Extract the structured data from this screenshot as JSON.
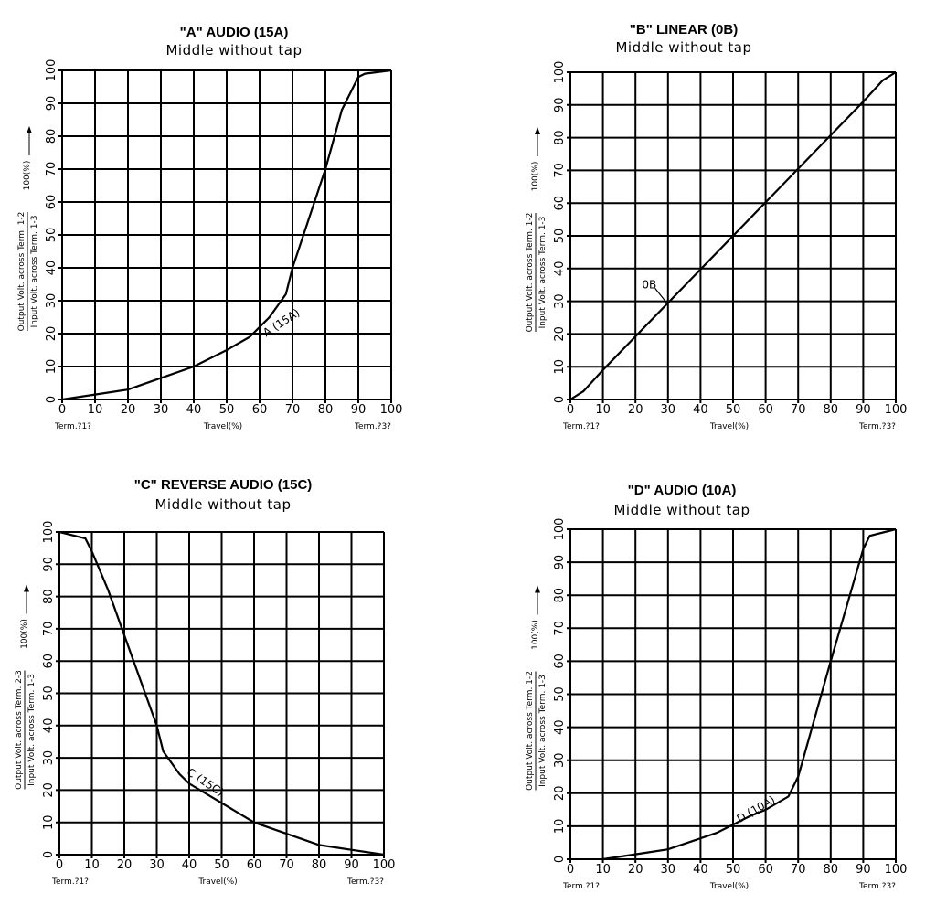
{
  "chart_data": [
    {
      "id": "A",
      "type": "line",
      "title": "\"A\" AUDIO (15A)",
      "subtitle": "Middle without tap",
      "xlabel": "Travel(%)",
      "ylabel": {
        "line1": "Output Volt. across Term. 1-2",
        "line2": "Input Volt. across Term. 1-3",
        "suffix": "100(%)"
      },
      "term_left": "Term.?1?",
      "term_right": "Term.?3?",
      "xlim": [
        0,
        100
      ],
      "ylim": [
        0,
        100
      ],
      "xticks": [
        "0",
        "10",
        "20",
        "30",
        "40",
        "50",
        "60",
        "70",
        "80",
        "90",
        "100"
      ],
      "yticks": [
        "0",
        "10",
        "20",
        "30",
        "40",
        "50",
        "60",
        "70",
        "80",
        "90",
        "100"
      ],
      "x": [
        0,
        10,
        20,
        30,
        40,
        50,
        57,
        60,
        63,
        68,
        70,
        80,
        85,
        90,
        92,
        100
      ],
      "y": [
        0,
        1.5,
        3,
        6.5,
        10,
        15,
        19,
        22,
        25,
        32,
        40,
        70,
        88,
        98,
        99,
        100
      ],
      "annotation": {
        "text": "A (15A)",
        "x": 62,
        "y": 19,
        "angle": -33
      }
    },
    {
      "id": "B",
      "type": "line",
      "title": "\"B\" LINEAR (0B)",
      "subtitle": "Middle without tap",
      "xlabel": "Travel(%)",
      "ylabel": {
        "line1": "Output Volt. across Term. 1-2",
        "line2": "Input Volt. across Term. 1-3",
        "suffix": "100(%)"
      },
      "term_left": "Term.?1?",
      "term_right": "Term.?3?",
      "xlim": [
        0,
        100
      ],
      "ylim": [
        0,
        100
      ],
      "xticks": [
        "0",
        "10",
        "20",
        "30",
        "40",
        "50",
        "60",
        "70",
        "80",
        "90",
        "100"
      ],
      "yticks": [
        "0",
        "10",
        "20",
        "30",
        "40",
        "50",
        "60",
        "70",
        "80",
        "90",
        "100"
      ],
      "x": [
        0,
        4,
        10,
        50,
        90,
        96,
        100
      ],
      "y": [
        0,
        2.5,
        9,
        50,
        91,
        97.5,
        100
      ],
      "annotation": {
        "text": "0B",
        "x": 22,
        "y": 34,
        "angle": 0,
        "leader": [
          26,
          34,
          30,
          29
        ]
      }
    },
    {
      "id": "C",
      "type": "line",
      "title": "\"C\" REVERSE AUDIO (15C)",
      "subtitle": "Middle without tap",
      "xlabel": "Travel(%)",
      "ylabel": {
        "line1": "Output Volt. across Term. 2-3",
        "line2": "Input Volt. across Term. 1-3",
        "suffix": "100(%)"
      },
      "term_left": "Term.?1?",
      "term_right": "Term.?3?",
      "xlim": [
        0,
        100
      ],
      "ylim": [
        0,
        100
      ],
      "xticks": [
        "0",
        "10",
        "20",
        "30",
        "40",
        "50",
        "60",
        "70",
        "80",
        "90",
        "100"
      ],
      "yticks": [
        "0",
        "10",
        "20",
        "30",
        "40",
        "50",
        "60",
        "70",
        "80",
        "90",
        "100"
      ],
      "x": [
        0,
        8,
        10,
        15,
        20,
        30,
        32,
        37,
        40,
        45,
        60,
        70,
        80,
        90,
        100
      ],
      "y": [
        100,
        98,
        94,
        82,
        68,
        40,
        32,
        25,
        22,
        19,
        10,
        6.5,
        3,
        1.5,
        0
      ],
      "annotation": {
        "text": "C (15C)",
        "x": 39,
        "y": 25,
        "angle": 33
      }
    },
    {
      "id": "D",
      "type": "line",
      "title": "\"D\" AUDIO (10A)",
      "subtitle": "Middle without tap",
      "xlabel": "Travel(%)",
      "ylabel": {
        "line1": "Output Volt. across Term. 1-2",
        "line2": "Input Volt. across Term. 1-3",
        "suffix": "100(%)"
      },
      "term_left": "Term.?1?",
      "term_right": "Term.?3?",
      "xlim": [
        0,
        100
      ],
      "ylim": [
        0,
        100
      ],
      "xticks": [
        "0",
        "10",
        "20",
        "30",
        "40",
        "50",
        "60",
        "70",
        "80",
        "90",
        "100"
      ],
      "yticks": [
        "0",
        "10",
        "20",
        "30",
        "40",
        "50",
        "60",
        "70",
        "80",
        "90",
        "100"
      ],
      "x": [
        10,
        20,
        30,
        45,
        55,
        60,
        67,
        70,
        80,
        90,
        92,
        100
      ],
      "y": [
        0,
        1.5,
        3,
        8,
        13,
        15,
        19,
        25,
        60,
        94,
        98,
        100
      ],
      "annotation": {
        "text": "D (10A)",
        "x": 52,
        "y": 11,
        "angle": -30
      }
    }
  ]
}
